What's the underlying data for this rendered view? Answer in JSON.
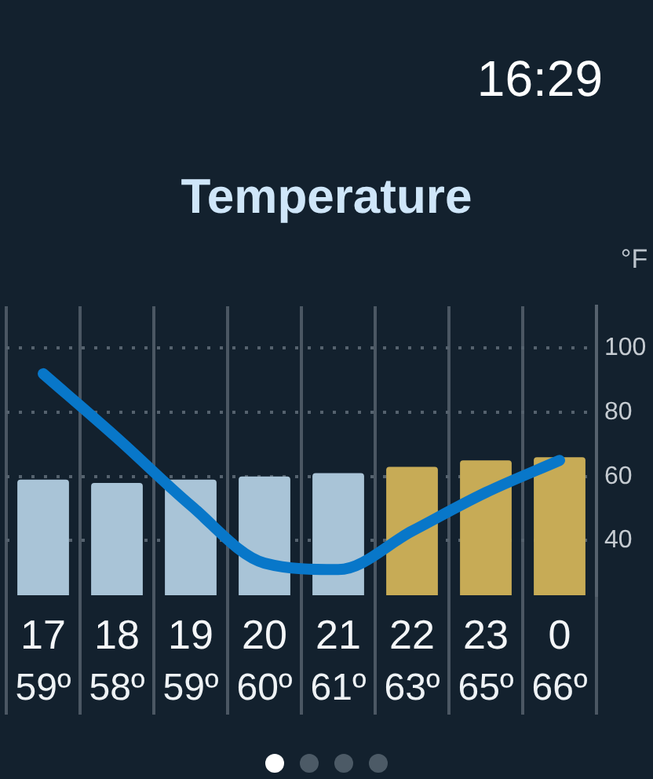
{
  "chart_data": {
    "type": "bar",
    "title": "Temperature",
    "ylabel": "°F",
    "annotations": [
      "16:29"
    ],
    "categories": [
      "17",
      "18",
      "19",
      "20",
      "21",
      "22",
      "23",
      "0"
    ],
    "series": [
      {
        "colors": [
          "#a9c4d7",
          "#a9c4d7",
          "#a9c4d7",
          "#a9c4d7",
          "#a9c4d7",
          "#c7ab56",
          "#c7ab56",
          "#c7ab56"
        ],
        "values": [
          59,
          58,
          59,
          60,
          61,
          63,
          65,
          66
        ],
        "value_labels": [
          "59º",
          "58º",
          "59º",
          "60º",
          "61º",
          "63º",
          "65º",
          "66º"
        ]
      },
      {
        "type": "line",
        "color": "#0877c9",
        "values": [
          92,
          72,
          51,
          33,
          31,
          43,
          55,
          65
        ]
      }
    ],
    "ylim": [
      23,
      113
    ],
    "yticks": [
      40,
      60,
      80,
      100
    ],
    "grid": true,
    "marker": "none",
    "line_style": "solid"
  }
}
